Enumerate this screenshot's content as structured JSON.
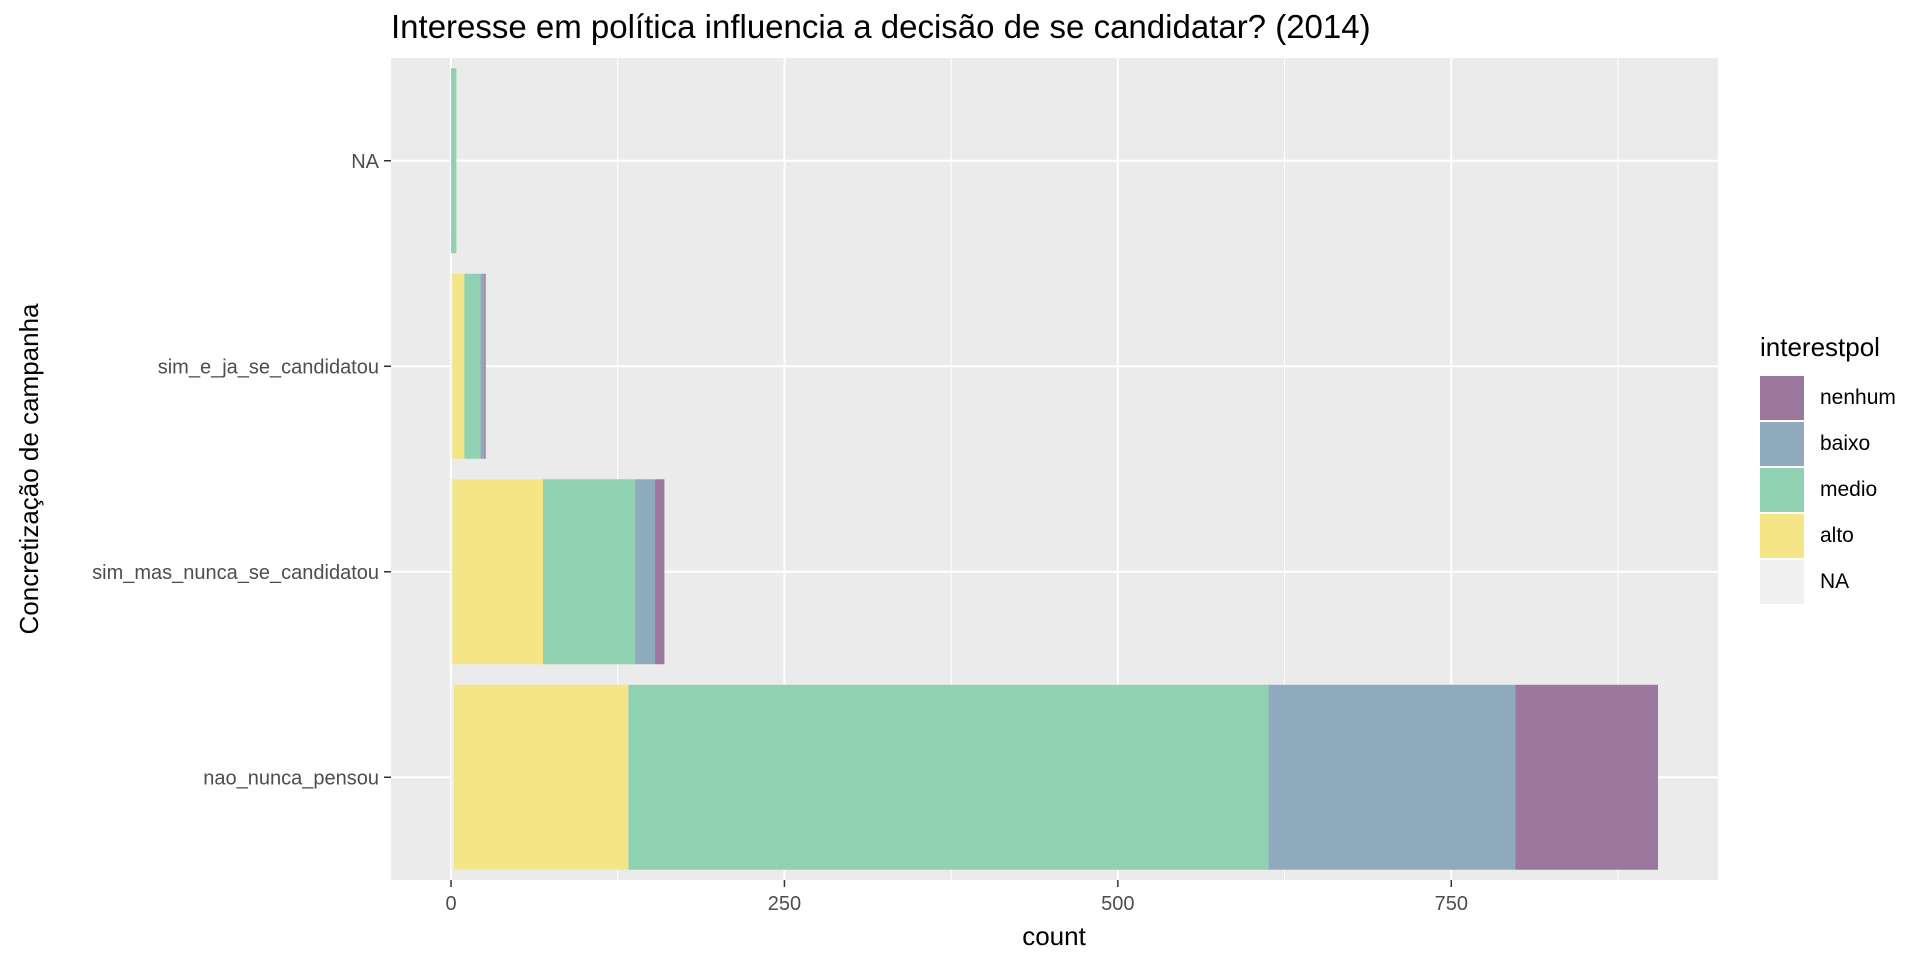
{
  "chart_data": {
    "type": "bar",
    "orientation": "horizontal",
    "stacked": true,
    "title": "Interesse em política influencia a decisão de se candidatar? (2014)",
    "xlabel": "count",
    "ylabel": "Concretização de campanha",
    "categories": [
      "nao_nunca_pensou",
      "sim_mas_nunca_se_candidatou",
      "sim_e_ja_se_candidatou",
      "NA"
    ],
    "xlim": [
      -45,
      950
    ],
    "xticks": [
      0,
      250,
      500,
      750
    ],
    "xtick_labels": [
      "0",
      "250",
      "500",
      "750"
    ],
    "grid": true,
    "legend_title": "interestpol",
    "legend_position": "right",
    "series": [
      {
        "name": "NA",
        "color": "#f0f0f0",
        "values": [
          2,
          1,
          1,
          0
        ]
      },
      {
        "name": "alto",
        "color": "#f4e687",
        "values": [
          131,
          68,
          9,
          0
        ]
      },
      {
        "name": "medio",
        "color": "#8fd1b1",
        "values": [
          480,
          69,
          12,
          4
        ]
      },
      {
        "name": "baixo",
        "color": "#8eaabc",
        "values": [
          185,
          15,
          3,
          0
        ]
      },
      {
        "name": "nenhum",
        "color": "#9b769d",
        "values": [
          107,
          7,
          1,
          0
        ]
      }
    ],
    "legend_order": [
      "nenhum",
      "baixo",
      "medio",
      "alto",
      "NA"
    ]
  }
}
